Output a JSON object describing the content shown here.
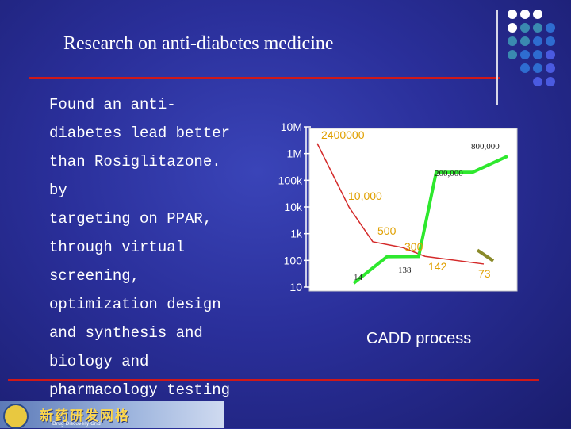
{
  "slide": {
    "title": "Research on anti-diabetes medicine",
    "body": "Found an anti-\ndiabetes lead better\nthan Rosiglitazone.\nby\ntargeting on PPAR,\nthrough virtual\nscreening,\noptimization design\nand synthesis and\nbiology and\npharmacology testing",
    "caption": "CADD process",
    "logo_text": "新药研发网格",
    "logo_subtext": "Drug Discovery Grid"
  },
  "colors": {
    "accent_red": "#d01818",
    "green_series": "#2ee82e",
    "red_series": "#d42a2a",
    "olive_series": "#8a8a2a",
    "label_orange": "#e0a000"
  },
  "chart_data": {
    "type": "line",
    "title": "",
    "xlabel": "",
    "ylabel": "",
    "y_scale": "log",
    "ylim": [
      10,
      10000000
    ],
    "y_ticks": [
      "10M",
      "1M",
      "100k",
      "10k",
      "1k",
      "100",
      "10"
    ],
    "series": [
      {
        "values": [
          2400000,
          10000,
          500,
          300,
          142,
          73
        ],
        "labels": [
          "2400000",
          "10,000",
          "500",
          "300",
          "142",
          "73"
        ]
      },
      {
        "values": [
          14,
          138,
          200000,
          800000
        ],
        "labels": [
          "14",
          "138",
          "200,000",
          "800,000"
        ]
      },
      {
        "values": [
          140,
          73
        ]
      }
    ]
  }
}
